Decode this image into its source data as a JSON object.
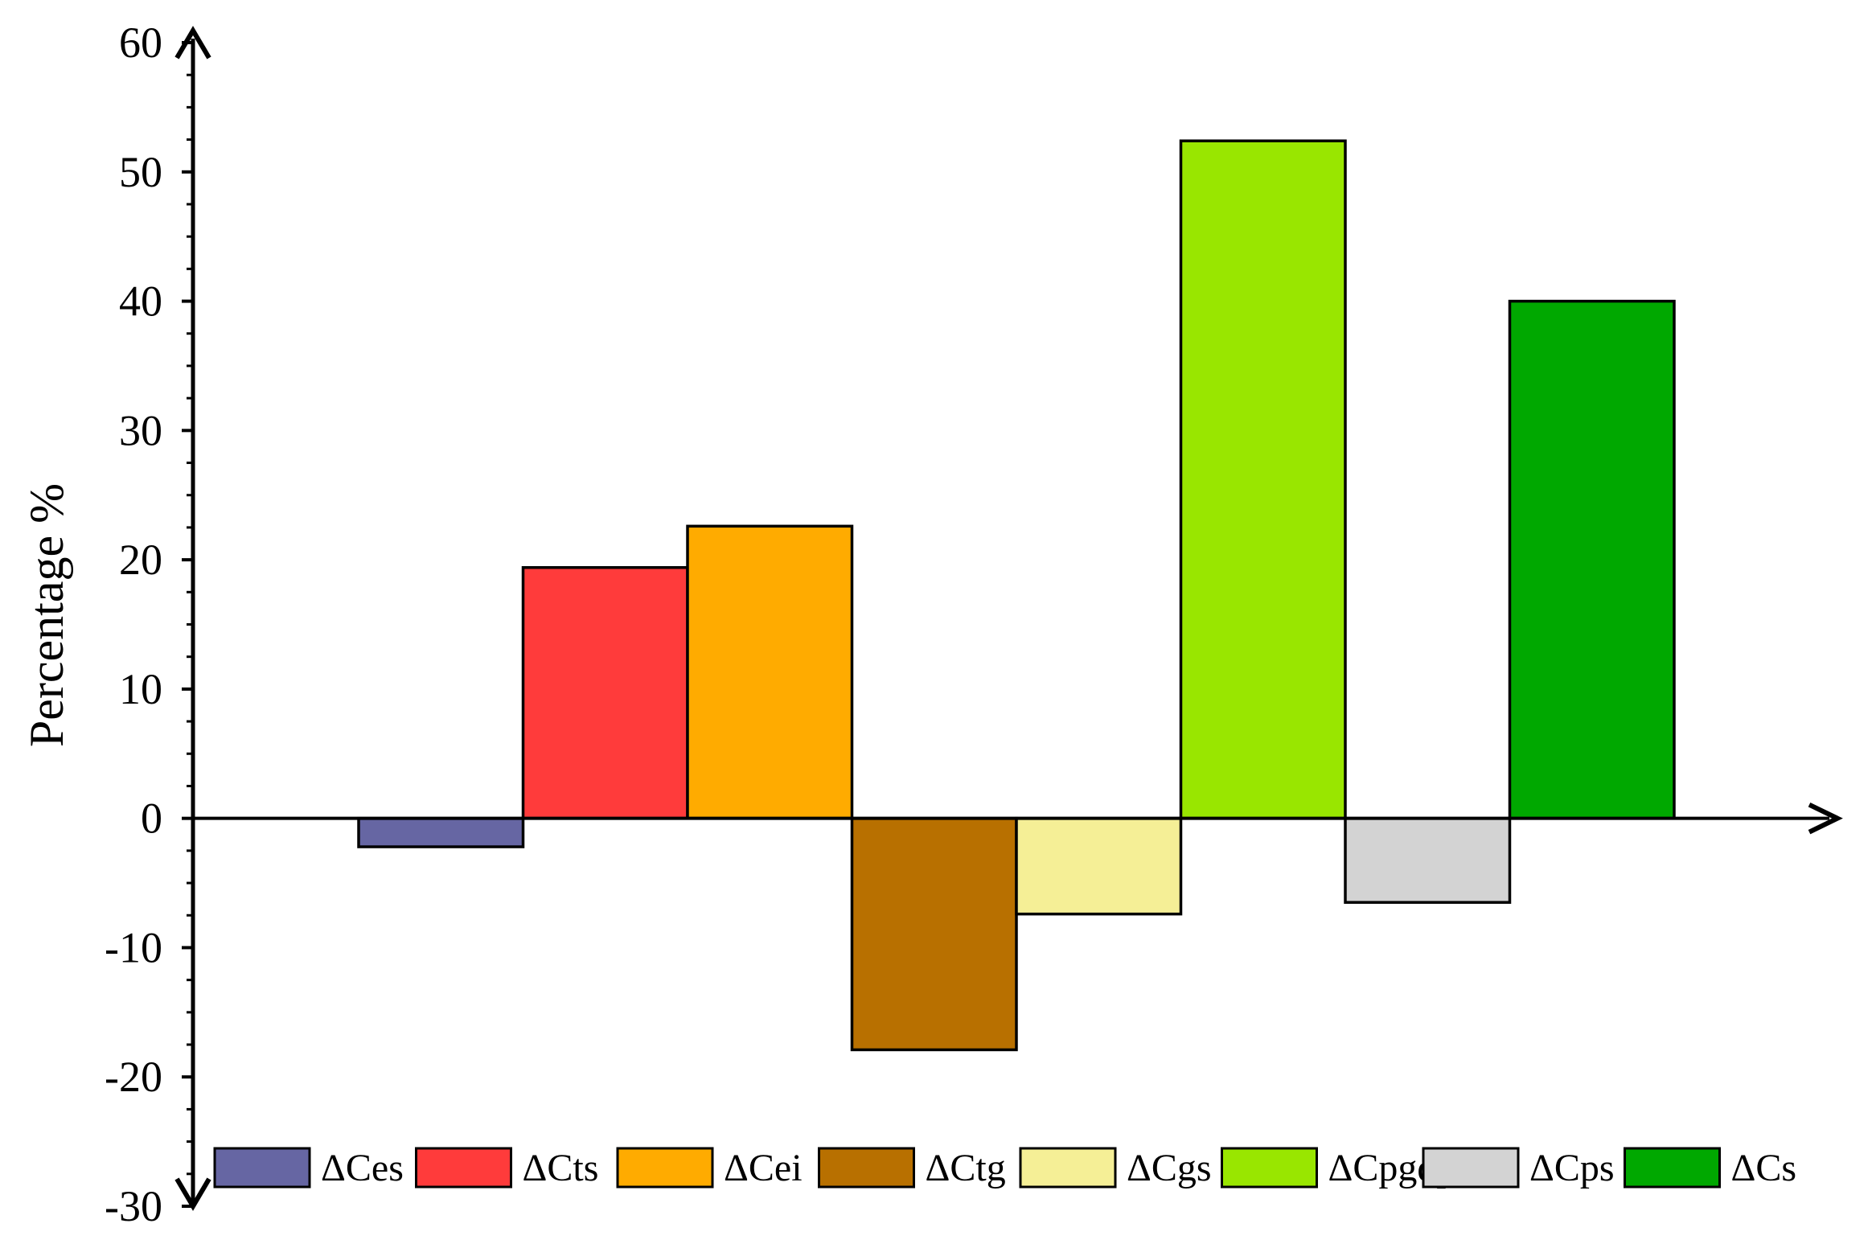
{
  "chart_data": {
    "type": "bar",
    "title": "",
    "xlabel": "",
    "ylabel": "Percentage  %",
    "ylim": [
      -30,
      60
    ],
    "yticks": [
      -30,
      -20,
      -10,
      0,
      10,
      20,
      30,
      40,
      50,
      60
    ],
    "grid": false,
    "legend_position": "bottom",
    "categories": [
      "ΔCes",
      "ΔCts",
      "ΔCei",
      "ΔCtg",
      "ΔCgs",
      "ΔCpgdp",
      "ΔCps",
      "ΔCs"
    ],
    "values": [
      -2.2,
      19.4,
      22.6,
      -17.9,
      -7.4,
      52.4,
      -6.5,
      40.0
    ],
    "colors": [
      "#6666a3",
      "#ff3b3b",
      "#ffab00",
      "#b87000",
      "#f5ef96",
      "#99e600",
      "#d3d3d3",
      "#00a800"
    ]
  }
}
